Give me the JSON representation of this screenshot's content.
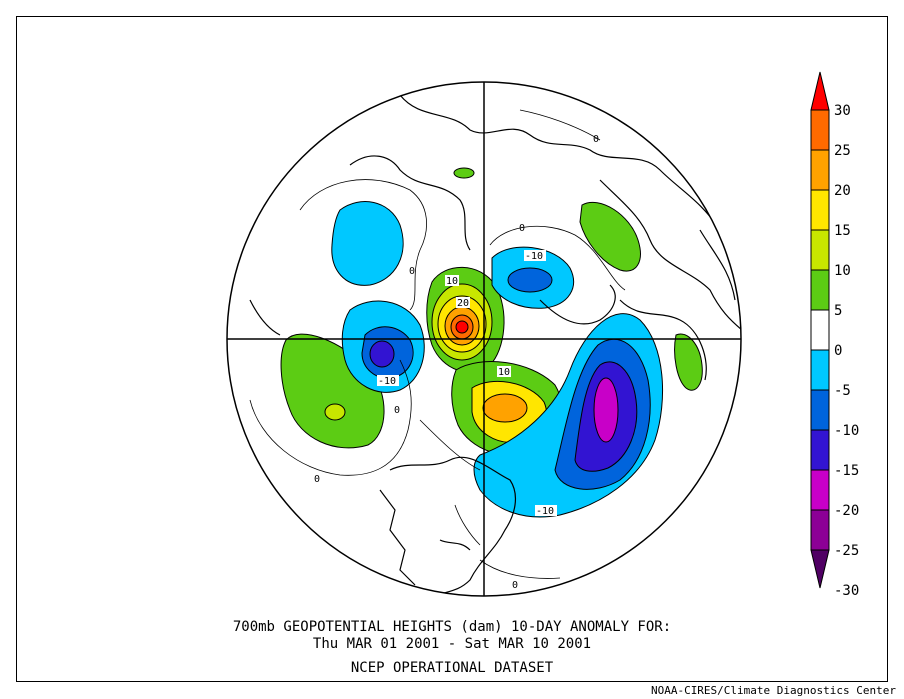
{
  "title_line1": "700mb GEOPOTENTIAL HEIGHTS (dam)   10-DAY ANOMALY FOR:",
  "title_line2": "Thu MAR 01 2001 - Sat MAR 10 2001",
  "title_line3": "NCEP OPERATIONAL DATASET",
  "credit": "NOAA-CIRES/Climate Diagnostics Center",
  "colorbar": {
    "labels": [
      "30",
      "25",
      "20",
      "15",
      "10",
      "5",
      "0",
      "-5",
      "-10",
      "-15",
      "-20",
      "-25",
      "-30"
    ],
    "colors": [
      "#ff0000",
      "#ff6a00",
      "#ffa200",
      "#ffe600",
      "#c8e600",
      "#5ccc14",
      "#ffffff",
      "#00c8ff",
      "#0064dc",
      "#3214d2",
      "#c800c8",
      "#8c0096",
      "#500064"
    ]
  },
  "contour_labels": [
    "-10",
    "10",
    "20",
    "-10",
    "10",
    "-10",
    "0",
    "0",
    "0",
    "0",
    "0",
    "0"
  ],
  "projection": "north-polar-stereographic"
}
